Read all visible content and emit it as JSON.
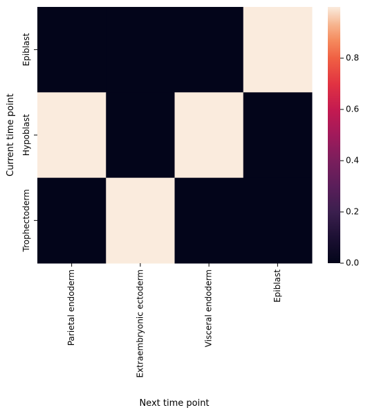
{
  "chart_data": {
    "type": "heatmap",
    "title": "",
    "xlabel": "Next time point",
    "ylabel": "Current time point",
    "x_categories": [
      "Parietal endoderm",
      "Extraembryonic ectoderm",
      "Visceral endoderm",
      "Epiblast"
    ],
    "y_categories": [
      "Epiblast",
      "Hypoblast",
      "Trophectoderm"
    ],
    "values": [
      [
        0.0,
        0.0,
        0.0,
        1.0
      ],
      [
        1.0,
        0.0,
        1.0,
        0.0
      ],
      [
        0.0,
        1.0,
        0.0,
        0.0
      ]
    ],
    "colorbar": {
      "vmin": 0.0,
      "vmax": 1.0,
      "ticks": [
        0.0,
        0.2,
        0.4,
        0.6,
        0.8
      ],
      "tick_labels": [
        "0.0",
        "0.2",
        "0.4",
        "0.6",
        "0.8"
      ]
    },
    "colormap": "rocket",
    "low_color": "#03051a",
    "high_color": "#faebdd",
    "grid": false,
    "legend": "right colorbar"
  }
}
